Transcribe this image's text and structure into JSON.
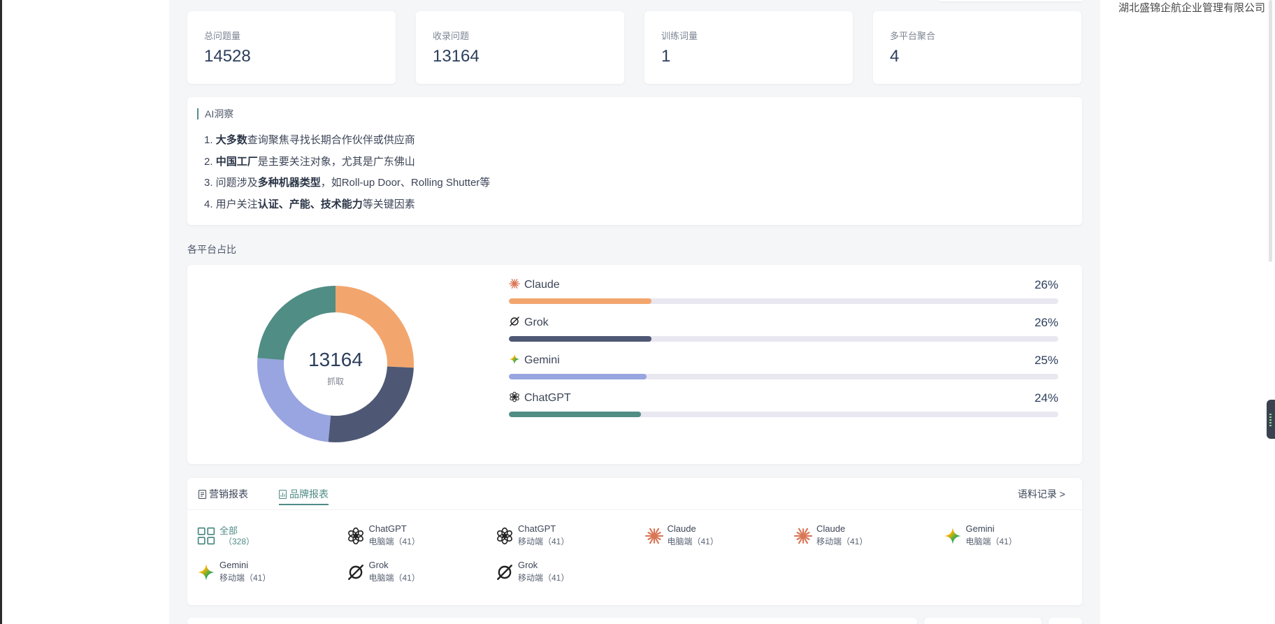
{
  "company": "湖北盛锦企航企业管理有限公司",
  "stats": [
    {
      "label": "总问题量",
      "value": "14528"
    },
    {
      "label": "收录问题",
      "value": "13164"
    },
    {
      "label": "训练词量",
      "value": "1"
    },
    {
      "label": "多平台聚合",
      "value": "4"
    }
  ],
  "ai_insight": {
    "title": "AI洞察",
    "items": [
      {
        "num": "1. ",
        "bold": "大多数",
        "rest": "查询聚焦寻找长期合作伙伴或供应商"
      },
      {
        "num": "2. ",
        "bold": "中国工厂",
        "rest": "是主要关注对象，尤其是广东佛山"
      },
      {
        "pre": "3. 问题涉及",
        "bold": "多种机器类型",
        "rest": "，如Roll-up Door、Rolling Shutter等"
      },
      {
        "pre": "4. 用户关注",
        "bold": "认证、产能、技术能力",
        "rest": "等关键因素"
      }
    ]
  },
  "platform_section": {
    "title": "各平台占比",
    "center_value": "13164",
    "center_label": "抓取"
  },
  "chart_data": {
    "type": "pie",
    "categories": [
      "Claude",
      "Grok",
      "Gemini",
      "ChatGPT"
    ],
    "values": [
      26,
      26,
      25,
      24
    ],
    "labels": [
      "26%",
      "26%",
      "25%",
      "24%"
    ],
    "colors": [
      "#f2a66e",
      "#4e5874",
      "#98a5e0",
      "#508d85"
    ],
    "legend": "right"
  },
  "icons": {
    "claude": "claude-icon",
    "grok": "grok-icon",
    "gemini": "gemini-icon",
    "chatgpt": "chatgpt-icon"
  },
  "tabs": {
    "marketing": "营销报表",
    "brand": "品牌报表",
    "corpus": "语料记录 >"
  },
  "platform_grid": [
    {
      "name": "全部",
      "sub": "（328）",
      "icon": "grid-icon"
    },
    {
      "name": "ChatGPT",
      "sub": "电脑端（41）",
      "icon": "chatgpt-icon"
    },
    {
      "name": "ChatGPT",
      "sub": "移动端（41）",
      "icon": "chatgpt-icon"
    },
    {
      "name": "Claude",
      "sub": "电脑端（41）",
      "icon": "claude-icon"
    },
    {
      "name": "Claude",
      "sub": "移动端（41）",
      "icon": "claude-icon"
    },
    {
      "name": "Gemini",
      "sub": "电脑端（41）",
      "icon": "gemini-icon"
    },
    {
      "name": "Gemini",
      "sub": "移动端（41）",
      "icon": "gemini-icon"
    },
    {
      "name": "Grok",
      "sub": "电脑端（41）",
      "icon": "grok-icon"
    },
    {
      "name": "Grok",
      "sub": "移动端（41）",
      "icon": "grok-icon"
    }
  ]
}
